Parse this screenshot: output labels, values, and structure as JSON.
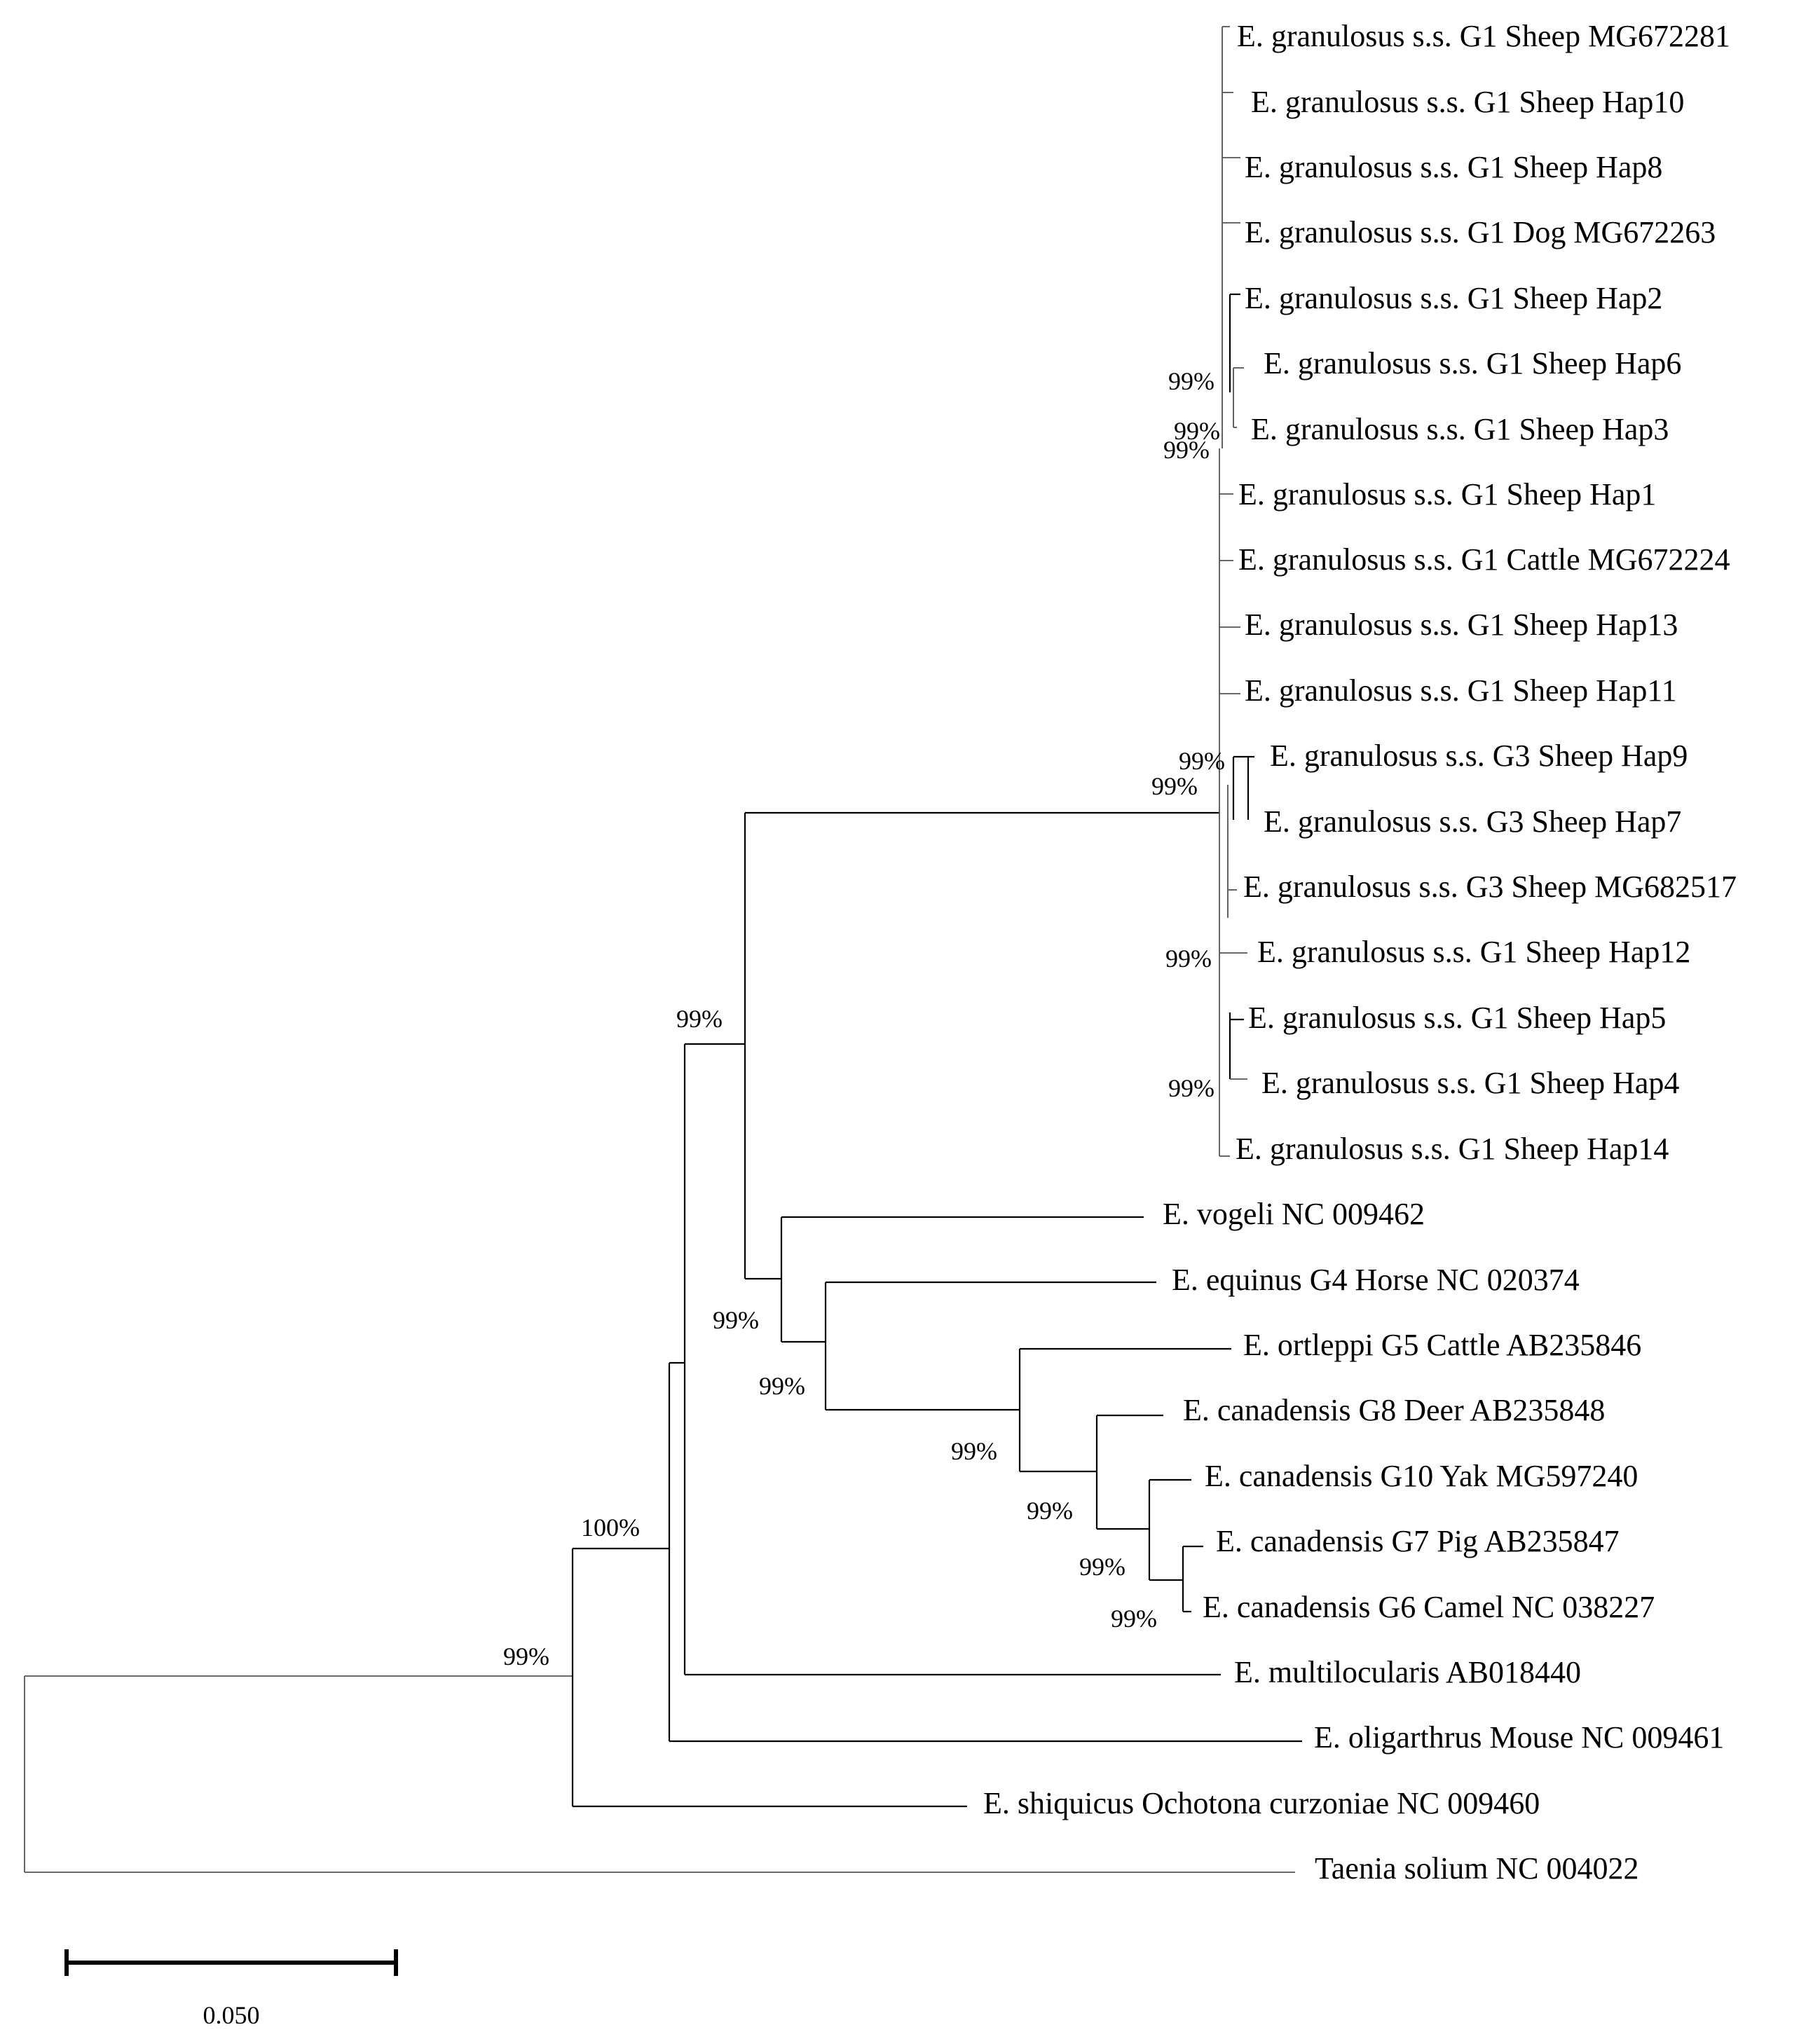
{
  "figure": {
    "taxa": [
      "E. granulosus s.s. G1 Sheep MG672281",
      "E. granulosus s.s. G1 Sheep Hap10",
      "E. granulosus s.s. G1 Sheep Hap8",
      "E. granulosus s.s. G1 Dog MG672263",
      "E. granulosus s.s. G1 Sheep Hap2",
      "E. granulosus s.s. G1 Sheep Hap6",
      "E. granulosus s.s. G1 Sheep Hap3",
      "E. granulosus s.s. G1 Sheep Hap1",
      "E. granulosus s.s. G1 Cattle MG672224",
      "E. granulosus s.s. G1 Sheep Hap13",
      "E. granulosus s.s. G1 Sheep Hap11",
      "E. granulosus s.s. G3 Sheep Hap9",
      "E. granulosus s.s. G3 Sheep Hap7",
      "E. granulosus s.s. G3 Sheep MG682517",
      "E. granulosus s.s. G1 Sheep Hap12",
      "E. granulosus s.s. G1 Sheep Hap5",
      "E. granulosus s.s. G1 Sheep Hap4",
      "E. granulosus s.s. G1 Sheep Hap14",
      "E. vogeli NC 009462",
      "E. equinus G4 Horse NC 020374",
      "E. ortleppi G5 Cattle AB235846",
      "E. canadensis G8 Deer AB235848",
      "E. canadensis G10 Yak MG597240",
      "E. canadensis G7 Pig AB235847",
      "E. canadensis G6 Camel NC 038227",
      "E. multilocularis AB018440",
      "E. oligarthrus Mouse NC 009461",
      "E. shiquicus Ochotona curzoniae NC 009460",
      "Taenia solium NC 004022"
    ],
    "bootstrap_values": [
      "99%",
      "99%",
      "99%",
      "99%",
      "99%",
      "99%",
      "99%",
      "99%",
      "99%",
      "99%",
      "99%",
      "99%",
      "99%",
      "99%",
      "100%",
      "99%"
    ],
    "scale_bar_label": "0.050"
  }
}
